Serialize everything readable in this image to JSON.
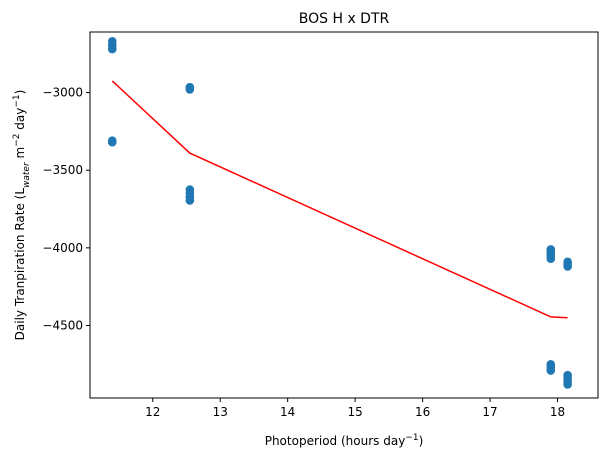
{
  "chart_data": {
    "type": "scatter",
    "title": "BOS H x DTR",
    "xlabel": "Photoperiod (hours day⁻¹)",
    "ylabel": "Daily Tranpiration Rate (L_water m⁻² day⁻¹)",
    "ylabel_parts": {
      "prefix": "Daily Tranpiration Rate (L",
      "sub": "water",
      "middle1": " m",
      "sup1": "−2",
      "middle2": " day",
      "sup2": "−1",
      "suffix": ")"
    },
    "xlabel_parts": {
      "prefix": "Photoperiod (hours day",
      "sup": "−1",
      "suffix": ")"
    },
    "xlim": [
      11.07,
      18.6
    ],
    "ylim": [
      -4967,
      -2610
    ],
    "x_ticks": [
      12,
      13,
      14,
      15,
      16,
      17,
      18
    ],
    "y_ticks": [
      -3000,
      -3500,
      -4000,
      -4500
    ],
    "x_tick_labels": [
      "12",
      "13",
      "14",
      "15",
      "16",
      "17",
      "18"
    ],
    "y_tick_labels": [
      "−3000",
      "−3500",
      "−4000",
      "−4500"
    ],
    "grid": false,
    "series": [
      {
        "kind": "scatter",
        "color": "#1f77b4",
        "points": [
          [
            11.4,
            -2670
          ],
          [
            11.4,
            -2695
          ],
          [
            11.4,
            -2720
          ],
          [
            11.4,
            -3310
          ],
          [
            11.4,
            -3320
          ],
          [
            12.55,
            -2965
          ],
          [
            12.55,
            -2980
          ],
          [
            12.55,
            -3625
          ],
          [
            12.55,
            -3650
          ],
          [
            12.55,
            -3675
          ],
          [
            12.55,
            -3695
          ],
          [
            17.9,
            -4010
          ],
          [
            17.9,
            -4030
          ],
          [
            17.9,
            -4050
          ],
          [
            17.9,
            -4070
          ],
          [
            17.9,
            -4750
          ],
          [
            17.9,
            -4770
          ],
          [
            17.9,
            -4790
          ],
          [
            18.15,
            -4090
          ],
          [
            18.15,
            -4105
          ],
          [
            18.15,
            -4120
          ],
          [
            18.15,
            -4820
          ],
          [
            18.15,
            -4840
          ],
          [
            18.15,
            -4860
          ],
          [
            18.15,
            -4880
          ]
        ]
      },
      {
        "kind": "line",
        "color": "#ff0000",
        "points": [
          [
            11.4,
            -2925
          ],
          [
            12.55,
            -3390
          ],
          [
            17.9,
            -4445
          ],
          [
            18.15,
            -4450
          ]
        ]
      }
    ]
  }
}
